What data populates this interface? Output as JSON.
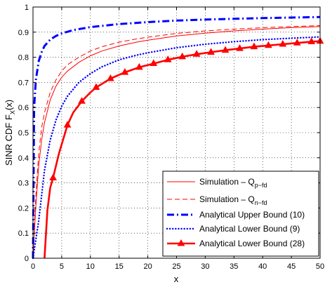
{
  "chart_data": {
    "type": "line",
    "title": "",
    "xlabel": "x",
    "ylabel": "SINR CDF F",
    "ylabel_sub": "X",
    "ylabel_suffix": "(x)",
    "xlim": [
      0,
      50
    ],
    "ylim": [
      0,
      1
    ],
    "x_ticks": [
      "0",
      "5",
      "10",
      "15",
      "20",
      "25",
      "30",
      "35",
      "40",
      "45",
      "50"
    ],
    "y_ticks": [
      "0",
      "0.1",
      "0.2",
      "0.3",
      "0.4",
      "0.5",
      "0.6",
      "0.7",
      "0.8",
      "0.9",
      "1"
    ],
    "grid": true,
    "legend_position": "bottom-right",
    "series": [
      {
        "name": "Simulation – Q",
        "name_sub": "p−fd",
        "color": "#ff0000",
        "style": "solid-thin",
        "x": [
          0,
          0.5,
          1,
          1.5,
          2,
          3,
          4,
          5,
          6,
          8,
          10,
          12,
          15,
          18,
          20,
          25,
          30,
          35,
          40,
          45,
          50
        ],
        "y": [
          0,
          0.21,
          0.37,
          0.47,
          0.54,
          0.63,
          0.685,
          0.72,
          0.745,
          0.78,
          0.806,
          0.825,
          0.845,
          0.86,
          0.868,
          0.885,
          0.896,
          0.905,
          0.912,
          0.918,
          0.922
        ]
      },
      {
        "name": "Simulation – Q",
        "name_sub": "n−fd",
        "color": "#ff0000",
        "style": "dashed",
        "x": [
          0,
          0.5,
          1,
          1.5,
          2,
          3,
          4,
          5,
          6,
          8,
          10,
          12,
          15,
          18,
          20,
          25,
          30,
          35,
          40,
          45,
          50
        ],
        "y": [
          0,
          0.25,
          0.42,
          0.52,
          0.58,
          0.66,
          0.71,
          0.745,
          0.77,
          0.8,
          0.825,
          0.842,
          0.86,
          0.873,
          0.88,
          0.895,
          0.905,
          0.912,
          0.918,
          0.922,
          0.926
        ]
      },
      {
        "name": "Analytical Upper Bound (10)",
        "color": "#0000ff",
        "style": "dashdot-thick",
        "x": [
          0,
          0.2,
          0.5,
          1,
          1.5,
          2,
          3,
          4,
          5,
          7,
          10,
          15,
          20,
          25,
          30,
          35,
          40,
          45,
          50
        ],
        "y": [
          0,
          0.6,
          0.71,
          0.785,
          0.82,
          0.845,
          0.87,
          0.885,
          0.895,
          0.908,
          0.92,
          0.932,
          0.94,
          0.946,
          0.95,
          0.953,
          0.956,
          0.958,
          0.96
        ]
      },
      {
        "name": "Analytical Lower Bound (9)",
        "color": "#0000ff",
        "style": "dotted",
        "x": [
          0,
          1,
          2,
          3,
          4,
          5,
          6,
          8,
          10,
          12,
          15,
          18,
          20,
          25,
          30,
          35,
          40,
          45,
          50
        ],
        "y": [
          0,
          0.15,
          0.35,
          0.47,
          0.55,
          0.605,
          0.645,
          0.7,
          0.735,
          0.762,
          0.79,
          0.808,
          0.818,
          0.838,
          0.852,
          0.862,
          0.87,
          0.876,
          0.881
        ]
      },
      {
        "name": "Analytical Lower Bound (28)",
        "color": "#ff0000",
        "style": "solid-thick-triangles",
        "x": [
          2,
          2.5,
          3,
          3.5,
          4.5,
          6,
          7,
          8.5,
          10,
          11,
          13.5,
          16,
          18.5,
          21,
          23.5,
          26,
          28.5,
          31,
          33.5,
          36,
          38.5,
          41,
          43.5,
          46,
          48.5,
          50
        ],
        "y": [
          0,
          0.19,
          0.28,
          0.32,
          0.415,
          0.53,
          0.58,
          0.625,
          0.66,
          0.68,
          0.715,
          0.74,
          0.76,
          0.775,
          0.79,
          0.802,
          0.812,
          0.82,
          0.828,
          0.835,
          0.842,
          0.847,
          0.852,
          0.857,
          0.862,
          0.864
        ]
      }
    ]
  }
}
